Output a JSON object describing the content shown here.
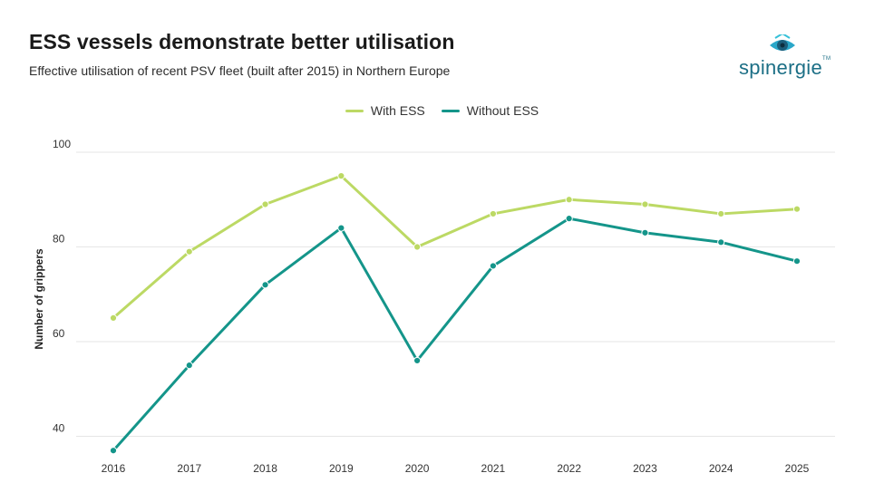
{
  "title": "ESS vessels demonstrate better utilisation",
  "subtitle": "Effective utilisation of recent PSV fleet (built after 2015) in Northern Europe",
  "logo": {
    "text": "spinergie",
    "tm": "TM",
    "icon": "eye-logo-icon"
  },
  "colors": {
    "with_ess": "#bcd964",
    "without_ess": "#14958a",
    "grid": "#e6e6e6"
  },
  "chart_data": {
    "type": "line",
    "title": "ESS vessels demonstrate better utilisation",
    "subtitle": "Effective utilisation of recent PSV fleet (built after 2015) in Northern Europe",
    "xlabel": "",
    "ylabel": "Number of grippers",
    "ylim": [
      38,
      100
    ],
    "yticks": [
      40,
      60,
      80,
      100
    ],
    "legend_position": "top-center",
    "grid": true,
    "categories": [
      "2016",
      "2017",
      "2018",
      "2019",
      "2020",
      "2021",
      "2022",
      "2023",
      "2024",
      "2025"
    ],
    "series": [
      {
        "name": "With ESS",
        "values": [
          65,
          79,
          89,
          95,
          80,
          87,
          90,
          89,
          87,
          88
        ]
      },
      {
        "name": "Without ESS",
        "values": [
          37,
          55,
          72,
          84,
          56,
          76,
          86,
          83,
          81,
          77
        ]
      }
    ]
  }
}
